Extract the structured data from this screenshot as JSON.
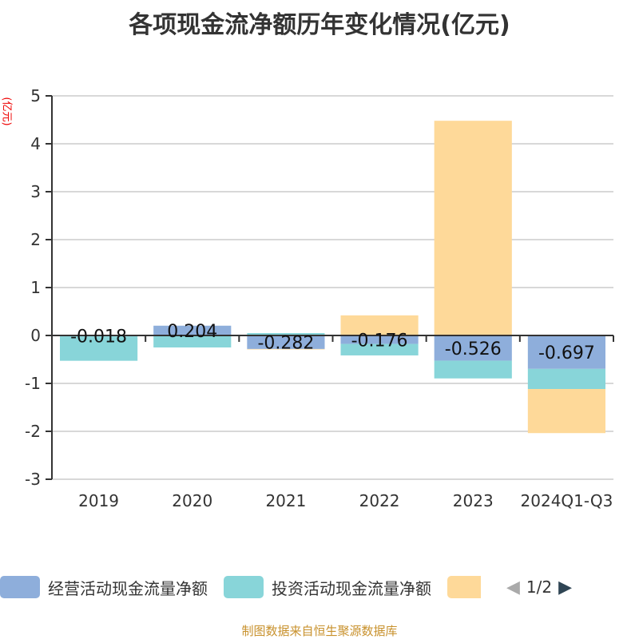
{
  "chart_data": {
    "type": "bar",
    "stacked": true,
    "title": "各项现金流净额历年变化情况(亿元)",
    "ylabel": "(亿元)",
    "categories": [
      "2019",
      "2020",
      "2021",
      "2022",
      "2023",
      "2024Q1-Q3"
    ],
    "ylim": [
      -3,
      5
    ],
    "yticks": [
      -3,
      -2,
      -1,
      0,
      1,
      2,
      3,
      4,
      5
    ],
    "grid": true,
    "legend_position": "bottom",
    "series": [
      {
        "name": "经营活动现金流量净额",
        "color": "#8eaedb",
        "values": [
          -0.018,
          0.204,
          -0.282,
          -0.176,
          -0.526,
          -0.697
        ],
        "labels": [
          "-0.018",
          "0.204",
          "-0.282",
          "-0.176",
          "-0.526",
          "-0.697"
        ]
      },
      {
        "name": "投资活动现金流量净额",
        "color": "#88d5d9",
        "values": [
          -0.51,
          -0.25,
          0.05,
          -0.24,
          -0.37,
          -0.42
        ]
      },
      {
        "name": "",
        "color": "#fed999",
        "values": [
          0,
          0,
          -0.01,
          0.42,
          4.48,
          -0.92
        ]
      }
    ]
  },
  "legend_page": "1/2",
  "source": "制图数据来自恒生聚源数据库"
}
